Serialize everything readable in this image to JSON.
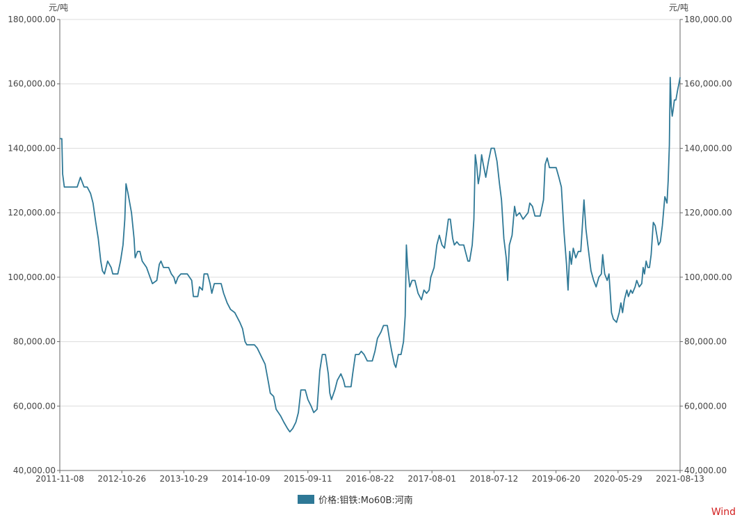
{
  "colors": {
    "series": "#2e7896",
    "grid": "#dcdcdc",
    "axis": "#666666",
    "brand": "#d21f1f"
  },
  "brand": "Wind",
  "chart_data": {
    "type": "line",
    "y_unit_left": "元/吨",
    "y_unit_right": "元/吨",
    "ylim": [
      40000,
      180000
    ],
    "y_ticks": [
      "40,000.00",
      "60,000.00",
      "80,000.00",
      "100,000.00",
      "120,000.00",
      "140,000.00",
      "160,000.00",
      "180,000.00"
    ],
    "x_ticks": [
      "2011-11-08",
      "2012-10-26",
      "2013-10-29",
      "2014-10-09",
      "2015-09-11",
      "2016-08-22",
      "2017-08-01",
      "2018-07-12",
      "2019-06-20",
      "2020-05-29",
      "2021-08-13"
    ],
    "xlim": [
      "2011-11-08",
      "2021-08-13"
    ],
    "grid": true,
    "legend_position": "bottom-center",
    "series": [
      {
        "name": "价格:钼铁:Mo60B:河南",
        "points": [
          [
            "2011-11-08",
            143000
          ],
          [
            "2011-11-20",
            143000
          ],
          [
            "2011-11-25",
            132000
          ],
          [
            "2011-12-05",
            128000
          ],
          [
            "2012-01-15",
            128000
          ],
          [
            "2012-02-20",
            128000
          ],
          [
            "2012-03-10",
            131000
          ],
          [
            "2012-04-01",
            128000
          ],
          [
            "2012-04-20",
            128000
          ],
          [
            "2012-05-10",
            126000
          ],
          [
            "2012-05-25",
            123000
          ],
          [
            "2012-06-10",
            117000
          ],
          [
            "2012-06-25",
            112000
          ],
          [
            "2012-07-10",
            105000
          ],
          [
            "2012-07-20",
            102000
          ],
          [
            "2012-08-01",
            101000
          ],
          [
            "2012-08-20",
            105000
          ],
          [
            "2012-09-10",
            103000
          ],
          [
            "2012-09-20",
            101000
          ],
          [
            "2012-10-20",
            101000
          ],
          [
            "2012-11-05",
            105000
          ],
          [
            "2012-11-20",
            110000
          ],
          [
            "2012-12-01",
            118000
          ],
          [
            "2012-12-08",
            129000
          ],
          [
            "2012-12-20",
            126000
          ],
          [
            "2013-01-10",
            120000
          ],
          [
            "2013-01-25",
            112000
          ],
          [
            "2013-02-01",
            106000
          ],
          [
            "2013-02-15",
            108000
          ],
          [
            "2013-03-01",
            108000
          ],
          [
            "2013-03-15",
            105000
          ],
          [
            "2013-04-10",
            103000
          ],
          [
            "2013-05-01",
            100000
          ],
          [
            "2013-05-15",
            98000
          ],
          [
            "2013-06-10",
            99000
          ],
          [
            "2013-06-25",
            104000
          ],
          [
            "2013-07-05",
            105000
          ],
          [
            "2013-07-20",
            103000
          ],
          [
            "2013-08-20",
            103000
          ],
          [
            "2013-09-05",
            101000
          ],
          [
            "2013-09-20",
            100000
          ],
          [
            "2013-10-01",
            98000
          ],
          [
            "2013-10-15",
            100000
          ],
          [
            "2013-11-01",
            101000
          ],
          [
            "2013-12-10",
            101000
          ],
          [
            "2014-01-05",
            99000
          ],
          [
            "2014-01-15",
            94000
          ],
          [
            "2014-02-10",
            94000
          ],
          [
            "2014-02-20",
            97000
          ],
          [
            "2014-03-10",
            96000
          ],
          [
            "2014-03-20",
            101000
          ],
          [
            "2014-04-10",
            101000
          ],
          [
            "2014-04-25",
            98000
          ],
          [
            "2014-05-05",
            95000
          ],
          [
            "2014-05-20",
            98000
          ],
          [
            "2014-06-30",
            98000
          ],
          [
            "2014-07-15",
            95000
          ],
          [
            "2014-08-05",
            92000
          ],
          [
            "2014-08-25",
            90000
          ],
          [
            "2014-09-20",
            89000
          ],
          [
            "2014-10-20",
            86000
          ],
          [
            "2014-11-05",
            84000
          ],
          [
            "2014-11-20",
            80000
          ],
          [
            "2014-12-01",
            79000
          ],
          [
            "2015-01-15",
            79000
          ],
          [
            "2015-02-01",
            78000
          ],
          [
            "2015-03-01",
            75000
          ],
          [
            "2015-03-20",
            73000
          ],
          [
            "2015-04-10",
            67000
          ],
          [
            "2015-04-20",
            64000
          ],
          [
            "2015-05-10",
            63000
          ],
          [
            "2015-05-25",
            59000
          ],
          [
            "2015-06-20",
            57000
          ],
          [
            "2015-07-10",
            55000
          ],
          [
            "2015-08-01",
            53000
          ],
          [
            "2015-08-15",
            52000
          ],
          [
            "2015-09-01",
            53000
          ],
          [
            "2015-09-20",
            55000
          ],
          [
            "2015-10-05",
            58000
          ],
          [
            "2015-10-20",
            65000
          ],
          [
            "2015-11-15",
            65000
          ],
          [
            "2015-12-01",
            62000
          ],
          [
            "2015-12-20",
            60000
          ],
          [
            "2016-01-05",
            58000
          ],
          [
            "2016-01-25",
            59000
          ],
          [
            "2016-02-10",
            71000
          ],
          [
            "2016-02-25",
            76000
          ],
          [
            "2016-03-15",
            76000
          ],
          [
            "2016-04-01",
            70000
          ],
          [
            "2016-04-10",
            64000
          ],
          [
            "2016-04-20",
            62000
          ],
          [
            "2016-05-10",
            65000
          ],
          [
            "2016-05-25",
            68000
          ],
          [
            "2016-06-15",
            70000
          ],
          [
            "2016-07-01",
            68000
          ],
          [
            "2016-07-10",
            66000
          ],
          [
            "2016-08-15",
            66000
          ],
          [
            "2016-08-25",
            70000
          ],
          [
            "2016-09-10",
            76000
          ],
          [
            "2016-10-01",
            76000
          ],
          [
            "2016-10-15",
            77000
          ],
          [
            "2016-11-01",
            76000
          ],
          [
            "2016-11-20",
            74000
          ],
          [
            "2016-12-20",
            74000
          ],
          [
            "2017-01-05",
            77000
          ],
          [
            "2017-01-20",
            81000
          ],
          [
            "2017-02-10",
            83000
          ],
          [
            "2017-02-25",
            85000
          ],
          [
            "2017-03-20",
            85000
          ],
          [
            "2017-04-01",
            81000
          ],
          [
            "2017-04-15",
            77000
          ],
          [
            "2017-05-01",
            73000
          ],
          [
            "2017-05-10",
            72000
          ],
          [
            "2017-05-25",
            76000
          ],
          [
            "2017-06-10",
            76000
          ],
          [
            "2017-06-25",
            80000
          ],
          [
            "2017-07-05",
            88000
          ],
          [
            "2017-07-12",
            110000
          ],
          [
            "2017-07-20",
            103000
          ],
          [
            "2017-08-01",
            97000
          ],
          [
            "2017-08-15",
            99000
          ],
          [
            "2017-09-01",
            99000
          ],
          [
            "2017-09-20",
            95000
          ],
          [
            "2017-10-10",
            93000
          ],
          [
            "2017-10-25",
            96000
          ],
          [
            "2017-11-10",
            95000
          ],
          [
            "2017-11-25",
            96000
          ],
          [
            "2017-12-05",
            100000
          ],
          [
            "2017-12-25",
            103000
          ],
          [
            "2018-01-10",
            110000
          ],
          [
            "2018-01-25",
            113000
          ],
          [
            "2018-02-10",
            110000
          ],
          [
            "2018-02-25",
            109000
          ],
          [
            "2018-03-10",
            114000
          ],
          [
            "2018-03-20",
            118000
          ],
          [
            "2018-04-01",
            118000
          ],
          [
            "2018-04-15",
            112000
          ],
          [
            "2018-04-25",
            110000
          ],
          [
            "2018-05-10",
            111000
          ],
          [
            "2018-05-25",
            110000
          ],
          [
            "2018-06-20",
            110000
          ],
          [
            "2018-07-05",
            107000
          ],
          [
            "2018-07-15",
            105000
          ],
          [
            "2018-07-25",
            105000
          ],
          [
            "2018-08-10",
            110000
          ],
          [
            "2018-08-20",
            118000
          ],
          [
            "2018-08-28",
            138000
          ],
          [
            "2018-09-05",
            135000
          ],
          [
            "2018-09-15",
            129000
          ],
          [
            "2018-09-25",
            132000
          ],
          [
            "2018-10-05",
            138000
          ],
          [
            "2018-10-15",
            135000
          ],
          [
            "2018-10-30",
            131000
          ],
          [
            "2018-11-15",
            136000
          ],
          [
            "2018-12-01",
            140000
          ],
          [
            "2018-12-20",
            140000
          ],
          [
            "2019-01-05",
            136000
          ],
          [
            "2019-01-20",
            129000
          ],
          [
            "2019-02-01",
            124000
          ],
          [
            "2019-02-15",
            112000
          ],
          [
            "2019-03-01",
            106000
          ],
          [
            "2019-03-10",
            99000
          ],
          [
            "2019-03-20",
            110000
          ],
          [
            "2019-04-05",
            113000
          ],
          [
            "2019-04-20",
            122000
          ],
          [
            "2019-05-01",
            119000
          ],
          [
            "2019-05-20",
            120000
          ],
          [
            "2019-06-10",
            118000
          ],
          [
            "2019-06-25",
            119000
          ],
          [
            "2019-07-10",
            120000
          ],
          [
            "2019-07-20",
            123000
          ],
          [
            "2019-08-05",
            122000
          ],
          [
            "2019-08-20",
            119000
          ],
          [
            "2019-09-20",
            119000
          ],
          [
            "2019-10-10",
            124000
          ],
          [
            "2019-10-20",
            135000
          ],
          [
            "2019-11-01",
            137000
          ],
          [
            "2019-11-15",
            134000
          ],
          [
            "2019-12-25",
            134000
          ],
          [
            "2020-01-10",
            131000
          ],
          [
            "2020-01-25",
            128000
          ],
          [
            "2020-02-10",
            114000
          ],
          [
            "2020-02-25",
            104000
          ],
          [
            "2020-03-05",
            96000
          ],
          [
            "2020-03-15",
            108000
          ],
          [
            "2020-03-25",
            104000
          ],
          [
            "2020-04-05",
            109000
          ],
          [
            "2020-04-20",
            106000
          ],
          [
            "2020-05-05",
            108000
          ],
          [
            "2020-05-20",
            108000
          ],
          [
            "2020-06-01",
            118000
          ],
          [
            "2020-06-08",
            124000
          ],
          [
            "2020-06-20",
            115000
          ],
          [
            "2020-07-01",
            110000
          ],
          [
            "2020-07-20",
            102000
          ],
          [
            "2020-08-05",
            99000
          ],
          [
            "2020-08-20",
            97000
          ],
          [
            "2020-09-05",
            100000
          ],
          [
            "2020-09-20",
            101000
          ],
          [
            "2020-09-28",
            107000
          ],
          [
            "2020-10-10",
            101000
          ],
          [
            "2020-10-25",
            99000
          ],
          [
            "2020-11-05",
            101000
          ],
          [
            "2020-11-20",
            89000
          ],
          [
            "2020-12-01",
            87000
          ],
          [
            "2020-12-20",
            86000
          ],
          [
            "2021-01-05",
            89000
          ],
          [
            "2021-01-15",
            92000
          ],
          [
            "2021-01-25",
            89000
          ],
          [
            "2021-02-05",
            93000
          ],
          [
            "2021-02-20",
            96000
          ],
          [
            "2021-03-01",
            94000
          ],
          [
            "2021-03-15",
            96000
          ],
          [
            "2021-03-25",
            95000
          ],
          [
            "2021-04-10",
            97000
          ],
          [
            "2021-04-20",
            99000
          ],
          [
            "2021-05-05",
            97000
          ],
          [
            "2021-05-20",
            98000
          ],
          [
            "2021-05-28",
            103000
          ],
          [
            "2021-06-05",
            101000
          ],
          [
            "2021-06-15",
            105000
          ],
          [
            "2021-06-25",
            103000
          ],
          [
            "2021-07-05",
            103000
          ],
          [
            "2021-07-15",
            107000
          ],
          [
            "2021-07-28",
            117000
          ],
          [
            "2021-08-08",
            116000
          ],
          [
            "2021-08-18",
            113000
          ],
          [
            "2021-08-28",
            110000
          ],
          [
            "2021-09-08",
            111000
          ],
          [
            "2021-09-20",
            116000
          ],
          [
            "2021-10-05",
            125000
          ],
          [
            "2021-10-12",
            124000
          ],
          [
            "2021-10-18",
            123000
          ],
          [
            "2021-10-25",
            130000
          ],
          [
            "2021-11-01",
            141000
          ],
          [
            "2021-11-06",
            162000
          ],
          [
            "2021-11-12",
            153000
          ],
          [
            "2021-11-18",
            150000
          ],
          [
            "2021-11-24",
            152000
          ],
          [
            "2021-12-01",
            155000
          ],
          [
            "2021-12-10",
            155000
          ],
          [
            "2021-12-20",
            158000
          ],
          [
            "2021-12-28",
            160000
          ],
          [
            "2022-01-04",
            162000
          ]
        ]
      }
    ]
  }
}
